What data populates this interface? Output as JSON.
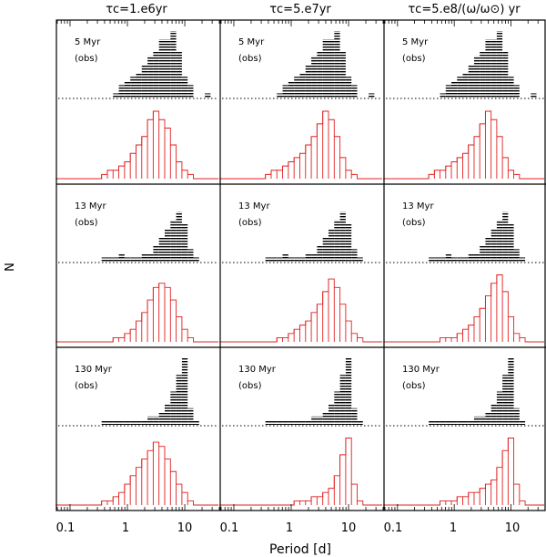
{
  "figure": {
    "ylabel": "N",
    "xlabel": "Period [d]",
    "column_titles": [
      "τc=1.e6yr",
      "τc=5.e7yr",
      "τc=5.e8/(ω/ω⊙) yr"
    ],
    "x_tick_labels": [
      "0.1",
      "1",
      "10"
    ]
  },
  "colors": {
    "observed": "#000000",
    "model": "#e02020",
    "frame": "#000000"
  },
  "chart_data": {
    "type": "bar",
    "x_scale": "log",
    "xlim": [
      0.06,
      40
    ],
    "bin_edges": [
      0.056,
      0.071,
      0.089,
      0.112,
      0.141,
      0.178,
      0.224,
      0.282,
      0.355,
      0.447,
      0.562,
      0.708,
      0.891,
      1.122,
      1.413,
      1.778,
      2.239,
      2.818,
      3.548,
      4.467,
      5.623,
      7.079,
      8.913,
      11.22,
      14.13,
      17.78,
      22.39,
      28.18,
      35.48
    ],
    "obs_style": "hatched histogram above dotted baseline",
    "model_style": "red outlined histogram",
    "rows": [
      {
        "age_label": "5 Myr",
        "obs_label": "(obs)",
        "observed": [
          0,
          0,
          0,
          0,
          0,
          0,
          0,
          0,
          0,
          0,
          1,
          3,
          4,
          5,
          6,
          8,
          10,
          11,
          14,
          14,
          16,
          11,
          5,
          3,
          0,
          0,
          1,
          0
        ],
        "model_by_column": [
          [
            0,
            0,
            0,
            0,
            0,
            0,
            0,
            0,
            1,
            2,
            2,
            3,
            4,
            6,
            8,
            10,
            14,
            16,
            14,
            12,
            8,
            4,
            2,
            1,
            0,
            0,
            0,
            0
          ],
          [
            0,
            0,
            0,
            0,
            0,
            0,
            0,
            0,
            1,
            2,
            2,
            3,
            4,
            5,
            6,
            8,
            10,
            13,
            16,
            14,
            10,
            5,
            2,
            1,
            0,
            0,
            0,
            0
          ],
          [
            0,
            0,
            0,
            0,
            0,
            0,
            0,
            0,
            1,
            2,
            2,
            3,
            4,
            5,
            6,
            8,
            10,
            13,
            16,
            14,
            10,
            5,
            2,
            1,
            0,
            0,
            0,
            0
          ]
        ]
      },
      {
        "age_label": "13 Myr",
        "obs_label": "(obs)",
        "observed": [
          0,
          0,
          0,
          0,
          0,
          0,
          0,
          0,
          1,
          1,
          1,
          2,
          1,
          1,
          1,
          2,
          2,
          4,
          6,
          8,
          10,
          12,
          9,
          3,
          1,
          0,
          0,
          0
        ],
        "model_by_column": [
          [
            0,
            0,
            0,
            0,
            0,
            0,
            0,
            0,
            0,
            0,
            1,
            1,
            2,
            3,
            5,
            7,
            10,
            13,
            14,
            13,
            10,
            6,
            3,
            1,
            0,
            0,
            0,
            0
          ],
          [
            0,
            0,
            0,
            0,
            0,
            0,
            0,
            0,
            0,
            0,
            1,
            1,
            2,
            3,
            4,
            5,
            7,
            9,
            12,
            15,
            13,
            9,
            5,
            2,
            1,
            0,
            0,
            0
          ],
          [
            0,
            0,
            0,
            0,
            0,
            0,
            0,
            0,
            0,
            0,
            1,
            1,
            1,
            2,
            3,
            4,
            6,
            8,
            11,
            14,
            16,
            12,
            6,
            2,
            1,
            0,
            0,
            0
          ]
        ]
      },
      {
        "age_label": "130 Myr",
        "obs_label": "(obs)",
        "observed": [
          0,
          0,
          0,
          0,
          0,
          0,
          0,
          0,
          1,
          1,
          1,
          1,
          1,
          1,
          1,
          1,
          2,
          2,
          3,
          5,
          8,
          12,
          16,
          4,
          1,
          0,
          0,
          0
        ],
        "model_by_column": [
          [
            0,
            0,
            0,
            0,
            0,
            0,
            0,
            0,
            1,
            1,
            2,
            3,
            5,
            7,
            9,
            11,
            13,
            15,
            14,
            11,
            8,
            5,
            3,
            1,
            0,
            0,
            0,
            0
          ],
          [
            0,
            0,
            0,
            0,
            0,
            0,
            0,
            0,
            0,
            0,
            0,
            0,
            0,
            1,
            1,
            1,
            2,
            2,
            3,
            4,
            7,
            12,
            16,
            5,
            1,
            0,
            0,
            0
          ],
          [
            0,
            0,
            0,
            0,
            0,
            0,
            0,
            0,
            0,
            0,
            1,
            1,
            1,
            2,
            2,
            3,
            3,
            4,
            5,
            6,
            9,
            13,
            16,
            5,
            1,
            0,
            0,
            0
          ]
        ]
      }
    ]
  }
}
